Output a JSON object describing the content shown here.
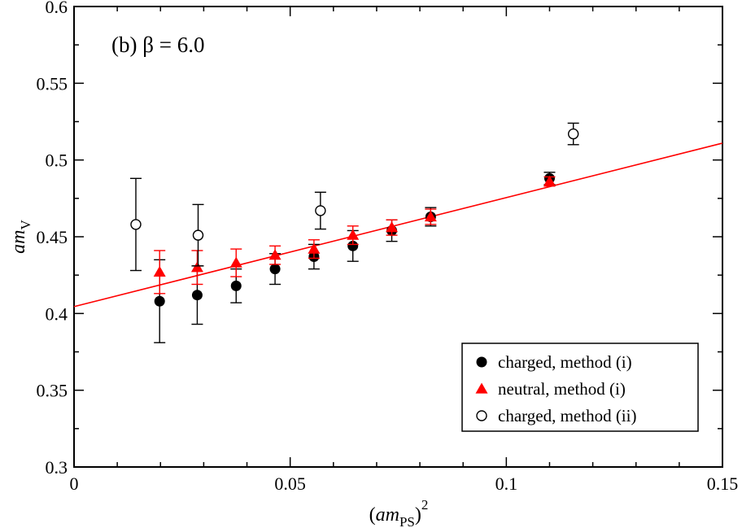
{
  "chart_data": {
    "type": "scatter",
    "annotation": "(b) β = 6.0",
    "xlabel": {
      "main": "am",
      "sub": "PS",
      "paren_open": "(",
      "paren_close": ")",
      "sup": "2"
    },
    "ylabel": {
      "main": "am",
      "sub": "V"
    },
    "xlim": [
      0,
      0.15
    ],
    "ylim": [
      0.3,
      0.6
    ],
    "x_ticks": [
      0,
      0.05,
      0.1,
      0.15
    ],
    "x_tick_labels": [
      "0",
      "0.05",
      "0.1",
      "0.15"
    ],
    "y_ticks": [
      0.3,
      0.35,
      0.4,
      0.45,
      0.5,
      0.55,
      0.6
    ],
    "y_tick_labels": [
      "0.3",
      "0.35",
      "0.4",
      "0.45",
      "0.5",
      "0.55",
      "0.6"
    ],
    "grid": false,
    "legend_position": "bottom-right",
    "fit_line": {
      "color": "#ff0000",
      "x": [
        0,
        0.15
      ],
      "y": [
        0.4045,
        0.511
      ]
    },
    "series": [
      {
        "name": "charged, method (i)",
        "marker": "filled-circle",
        "color": "#000000",
        "errorbar_color": "#000000",
        "points": [
          {
            "x": 0.0198,
            "y": 0.408,
            "err": 0.027
          },
          {
            "x": 0.0285,
            "y": 0.412,
            "err": 0.019
          },
          {
            "x": 0.0375,
            "y": 0.418,
            "err": 0.011
          },
          {
            "x": 0.0465,
            "y": 0.429,
            "err": 0.01
          },
          {
            "x": 0.0555,
            "y": 0.437,
            "err": 0.008
          },
          {
            "x": 0.0645,
            "y": 0.444,
            "err": 0.01
          },
          {
            "x": 0.0735,
            "y": 0.454,
            "err": 0.007
          },
          {
            "x": 0.0825,
            "y": 0.463,
            "err": 0.006
          },
          {
            "x": 0.11,
            "y": 0.488,
            "err": 0.004
          }
        ]
      },
      {
        "name": "neutral, method (i)",
        "marker": "filled-triangle",
        "color": "#ff0000",
        "errorbar_color": "#ff0000",
        "points": [
          {
            "x": 0.0198,
            "y": 0.427,
            "err": 0.014
          },
          {
            "x": 0.0285,
            "y": 0.43,
            "err": 0.011
          },
          {
            "x": 0.0375,
            "y": 0.433,
            "err": 0.009
          },
          {
            "x": 0.0465,
            "y": 0.438,
            "err": 0.006
          },
          {
            "x": 0.0555,
            "y": 0.442,
            "err": 0.006
          },
          {
            "x": 0.0645,
            "y": 0.451,
            "err": 0.006
          },
          {
            "x": 0.0735,
            "y": 0.456,
            "err": 0.005
          },
          {
            "x": 0.0825,
            "y": 0.463,
            "err": 0.005
          },
          {
            "x": 0.11,
            "y": 0.486,
            "err": 0.003
          }
        ]
      },
      {
        "name": "charged, method (ii)",
        "marker": "open-circle",
        "color": "#000000",
        "errorbar_color": "#000000",
        "points": [
          {
            "x": 0.0143,
            "y": 0.458,
            "err": 0.03
          },
          {
            "x": 0.0287,
            "y": 0.451,
            "err": 0.02
          },
          {
            "x": 0.057,
            "y": 0.467,
            "err": 0.012
          },
          {
            "x": 0.1155,
            "y": 0.517,
            "err": 0.007
          }
        ]
      }
    ]
  }
}
